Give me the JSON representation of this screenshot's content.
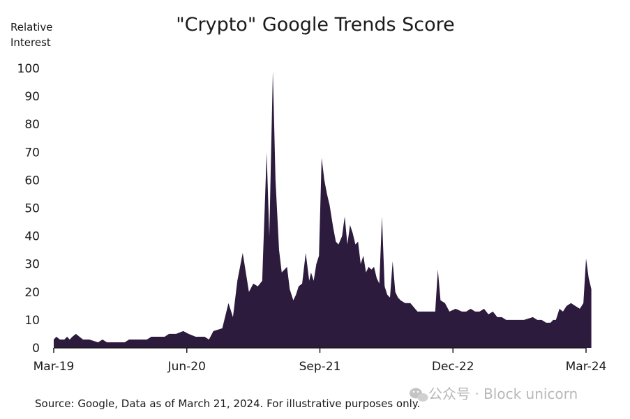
{
  "chart_data": {
    "type": "area",
    "title": "\"Crypto\" Google Trends Score",
    "ylabel_lines": [
      "Relative",
      "Interest"
    ],
    "xlabel": "",
    "ylim": [
      0,
      100
    ],
    "yticks": [
      0,
      10,
      20,
      30,
      40,
      50,
      60,
      70,
      80,
      90,
      100
    ],
    "xlim": [
      0,
      60.7
    ],
    "xticks": [
      {
        "label": "Mar-19",
        "month_index": 0
      },
      {
        "label": "Jun-20",
        "month_index": 15
      },
      {
        "label": "Sep-21",
        "month_index": 30
      },
      {
        "label": "Dec-22",
        "month_index": 45
      },
      {
        "label": "Mar-24",
        "month_index": 60
      }
    ],
    "series": [
      {
        "name": "Crypto",
        "color": "#2d1b3d",
        "x": [
          0,
          0.3,
          0.7,
          1.2,
          1.5,
          1.8,
          2.1,
          2.5,
          2.9,
          3.3,
          4,
          5,
          5.5,
          6,
          7,
          8,
          8.5,
          9,
          10,
          10.5,
          11,
          12,
          12.5,
          13,
          13.8,
          14.6,
          15.2,
          16,
          17,
          17.5,
          18,
          19,
          19.7,
          20.2,
          20.7,
          21.3,
          22,
          22.5,
          23,
          23.5,
          24,
          24.3,
          24.7,
          25,
          25.4,
          25.7,
          26.3,
          26.6,
          27,
          27.3,
          27.6,
          28,
          28.4,
          28.8,
          29,
          29.3,
          29.6,
          29.9,
          30.2,
          30.5,
          30.8,
          31.1,
          31.5,
          31.8,
          32.1,
          32.5,
          32.8,
          33.1,
          33.4,
          33.7,
          34,
          34.3,
          34.6,
          34.9,
          35.2,
          35.5,
          35.8,
          36.1,
          36.4,
          36.7,
          37,
          37.3,
          37.6,
          37.9,
          38.2,
          38.5,
          38.8,
          39.1,
          39.6,
          40.2,
          41,
          41.6,
          42.2,
          43,
          43.3,
          43.6,
          44.1,
          44.6,
          45.3,
          46,
          46.5,
          47,
          47.5,
          48,
          48.5,
          49,
          49.5,
          50,
          50.5,
          51,
          52,
          53,
          54,
          54.5,
          55,
          55.5,
          56,
          56.3,
          56.6,
          57,
          57.4,
          57.8,
          58.3,
          58.8,
          59.3,
          59.7,
          60,
          60.3,
          60.6,
          60.6
        ],
        "values": [
          3,
          4,
          3,
          3,
          4,
          3,
          4,
          5,
          4,
          3,
          3,
          2,
          3,
          2,
          2,
          2,
          3,
          3,
          3,
          3,
          4,
          4,
          4,
          5,
          5,
          6,
          5,
          4,
          4,
          3,
          6,
          7,
          16,
          11,
          24,
          34,
          20,
          23,
          22,
          24,
          70,
          40,
          99,
          60,
          35,
          27,
          29,
          21,
          17,
          19,
          22,
          23,
          34,
          24,
          27,
          24,
          30,
          33,
          68,
          60,
          55,
          51,
          43,
          38,
          37,
          40,
          47,
          37,
          44,
          41,
          37,
          38,
          30,
          33,
          27,
          29,
          28,
          29,
          25,
          23,
          47,
          22,
          19,
          18,
          31,
          20,
          18,
          17,
          16,
          16,
          13,
          13,
          13,
          13,
          28,
          17,
          16,
          13,
          14,
          13,
          13,
          14,
          13,
          13,
          14,
          12,
          13,
          11,
          11,
          10,
          10,
          10,
          11,
          10,
          10,
          9,
          9,
          10,
          10,
          14,
          13,
          15,
          16,
          15,
          14,
          16,
          32,
          25,
          21,
          0
        ]
      }
    ]
  },
  "source_note": "Source: Google, Data as of March 21, 2024. For illustrative purposes only.",
  "watermark": {
    "icon": "wechat-icon",
    "text": "公众号 · Block unicorn"
  }
}
